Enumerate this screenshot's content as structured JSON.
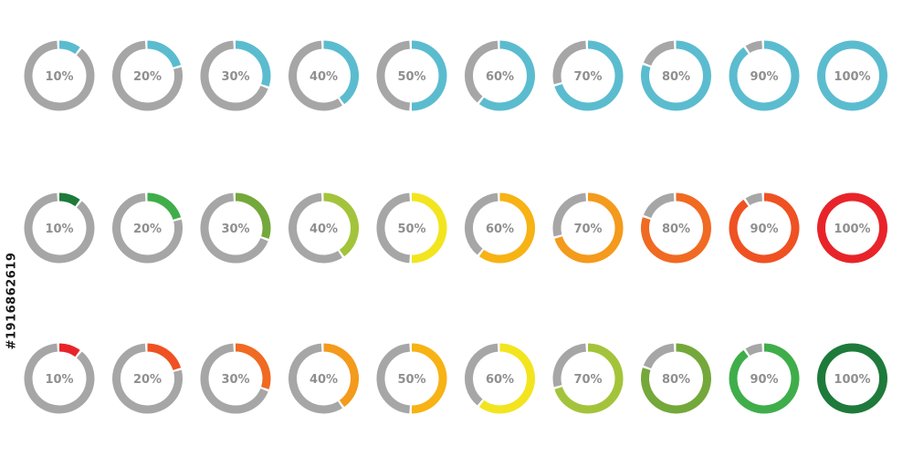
{
  "track_color": "#a6a6a6",
  "label_color": "#8f8f8f",
  "stock_id": "#191686261​9",
  "rows": [
    {
      "items": [
        {
          "value": 10,
          "label": "10%",
          "color": "#5bbccf"
        },
        {
          "value": 20,
          "label": "20%",
          "color": "#5bbccf"
        },
        {
          "value": 30,
          "label": "30%",
          "color": "#5bbccf"
        },
        {
          "value": 40,
          "label": "40%",
          "color": "#5bbccf"
        },
        {
          "value": 50,
          "label": "50%",
          "color": "#5bbccf"
        },
        {
          "value": 60,
          "label": "60%",
          "color": "#5bbccf"
        },
        {
          "value": 70,
          "label": "70%",
          "color": "#5bbccf"
        },
        {
          "value": 80,
          "label": "80%",
          "color": "#5bbccf"
        },
        {
          "value": 90,
          "label": "90%",
          "color": "#5bbccf"
        },
        {
          "value": 100,
          "label": "100%",
          "color": "#5bbccf"
        }
      ]
    },
    {
      "items": [
        {
          "value": 10,
          "label": "10%",
          "color": "#1e7a3a"
        },
        {
          "value": 20,
          "label": "20%",
          "color": "#3fae4a"
        },
        {
          "value": 30,
          "label": "30%",
          "color": "#74a83a"
        },
        {
          "value": 40,
          "label": "40%",
          "color": "#a3c43a"
        },
        {
          "value": 50,
          "label": "50%",
          "color": "#f2e51f"
        },
        {
          "value": 60,
          "label": "60%",
          "color": "#f7b214"
        },
        {
          "value": 70,
          "label": "70%",
          "color": "#f49a1c"
        },
        {
          "value": 80,
          "label": "80%",
          "color": "#f06a22"
        },
        {
          "value": 90,
          "label": "90%",
          "color": "#ef5122"
        },
        {
          "value": 100,
          "label": "100%",
          "color": "#e8242a"
        }
      ]
    },
    {
      "items": [
        {
          "value": 10,
          "label": "10%",
          "color": "#e8242a"
        },
        {
          "value": 20,
          "label": "20%",
          "color": "#ef5122"
        },
        {
          "value": 30,
          "label": "30%",
          "color": "#f06a22"
        },
        {
          "value": 40,
          "label": "40%",
          "color": "#f49a1c"
        },
        {
          "value": 50,
          "label": "50%",
          "color": "#f7b214"
        },
        {
          "value": 60,
          "label": "60%",
          "color": "#f2e51f"
        },
        {
          "value": 70,
          "label": "70%",
          "color": "#a3c43a"
        },
        {
          "value": 80,
          "label": "80%",
          "color": "#74a83a"
        },
        {
          "value": 90,
          "label": "90%",
          "color": "#3fae4a"
        },
        {
          "value": 100,
          "label": "100%",
          "color": "#1e7a3a"
        }
      ]
    }
  ]
}
